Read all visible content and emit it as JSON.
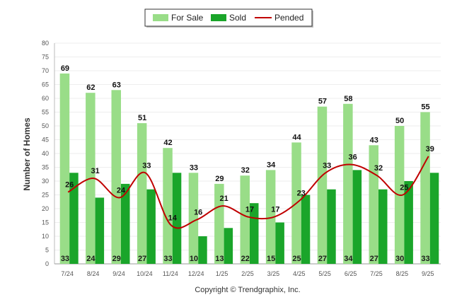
{
  "chart_data": {
    "type": "bar",
    "categories": [
      "7/24",
      "8/24",
      "9/24",
      "10/24",
      "11/24",
      "12/24",
      "1/25",
      "2/25",
      "3/25",
      "4/25",
      "5/25",
      "6/25",
      "7/25",
      "8/25",
      "9/25"
    ],
    "series": [
      {
        "name": "For Sale",
        "type": "bar",
        "color": "#99dd88",
        "values": [
          69,
          62,
          63,
          51,
          42,
          33,
          29,
          32,
          34,
          44,
          57,
          58,
          43,
          50,
          55
        ]
      },
      {
        "name": "Sold",
        "type": "bar",
        "color": "#1aa52a",
        "values": [
          33,
          24,
          29,
          27,
          33,
          10,
          13,
          22,
          15,
          25,
          27,
          34,
          27,
          30,
          33
        ]
      },
      {
        "name": "Pended",
        "type": "line",
        "color": "#c00000",
        "values": [
          26,
          31,
          24,
          33,
          14,
          16,
          21,
          17,
          17,
          23,
          33,
          36,
          32,
          25,
          39
        ]
      }
    ],
    "ylabel": "Number of Homes",
    "xlabel": "",
    "ylim": [
      0,
      80
    ],
    "ytick_step": 5,
    "legend_position": "top-center",
    "grid": true
  },
  "footer": {
    "copyright": "Copyright © Trendgraphix, Inc."
  }
}
